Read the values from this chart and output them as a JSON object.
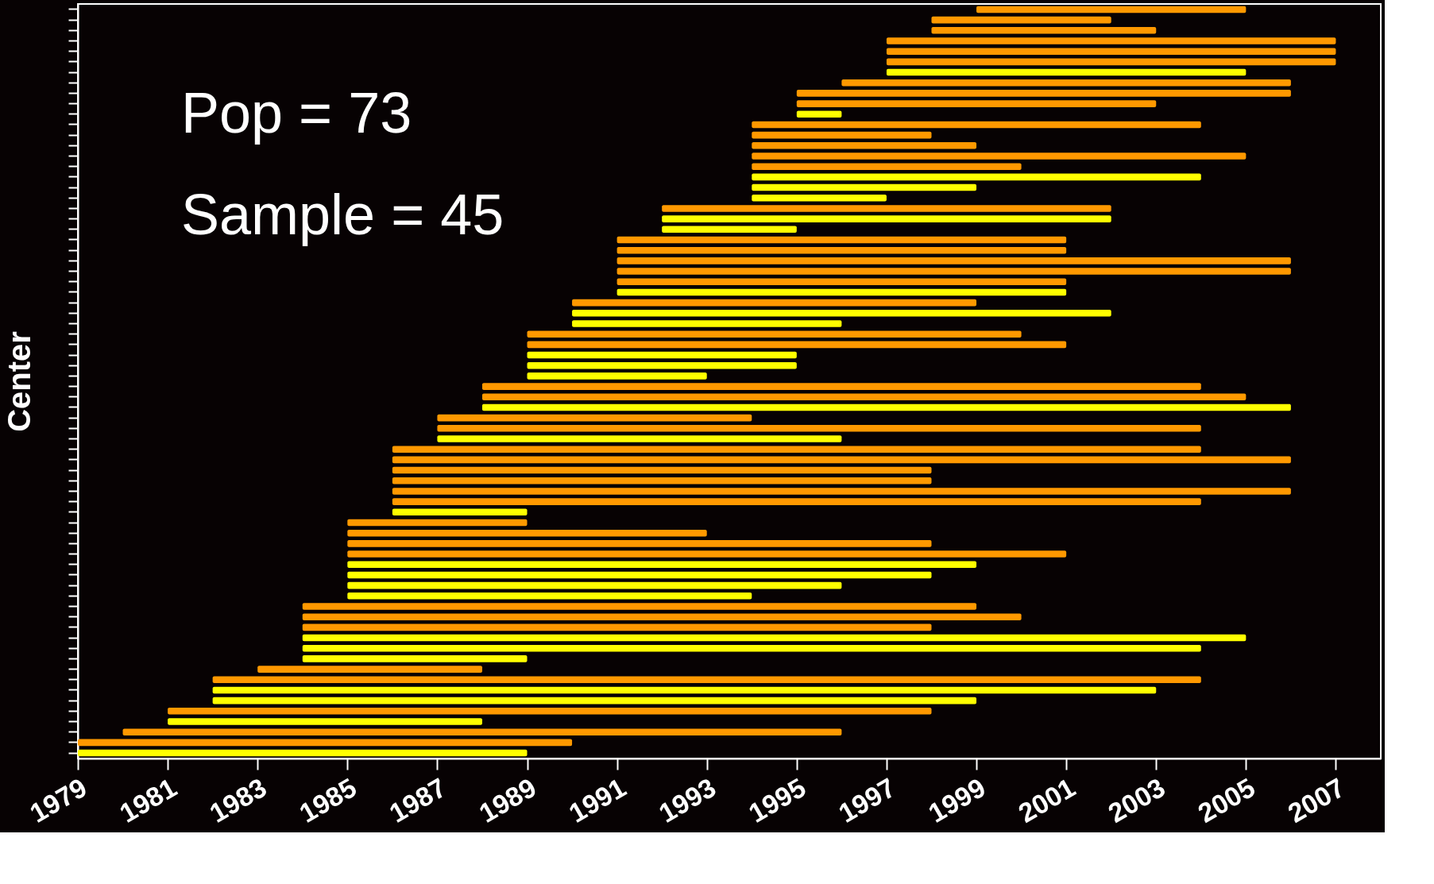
{
  "chart_data": {
    "type": "bar",
    "orientation": "horizontal",
    "ylabel": "Center",
    "tick_labels": "x",
    "grid": false,
    "annotations": [
      "Pop = 73",
      "Sample = 45"
    ],
    "categories": [
      null,
      null,
      null,
      null,
      null,
      null,
      null,
      null,
      null,
      null,
      null,
      null,
      null,
      null,
      null,
      null,
      null,
      null,
      null,
      null,
      null,
      null,
      null,
      null,
      null,
      null,
      null,
      null,
      null,
      null,
      null,
      null,
      null,
      null,
      null,
      null,
      null,
      null,
      null,
      null,
      null,
      null,
      null,
      null,
      null,
      null,
      null,
      null,
      null,
      null,
      null,
      null,
      null,
      null,
      null,
      null,
      null,
      null,
      null,
      null,
      null,
      null,
      null,
      null,
      null,
      null,
      null,
      null,
      null,
      null,
      null,
      null
    ],
    "base": [
      1999,
      1998,
      1998,
      1997,
      1997,
      1997,
      1997,
      1996,
      1995,
      1995,
      1995,
      1994,
      1994,
      1994,
      1994,
      1994,
      1994,
      1994,
      1994,
      1992,
      1992,
      1992,
      1991,
      1991,
      1991,
      1991,
      1991,
      1991,
      1990,
      1990,
      1990,
      1989,
      1989,
      1989,
      1989,
      1989,
      1988,
      1988,
      1988,
      1987,
      1987,
      1987,
      1986,
      1986,
      1986,
      1986,
      1986,
      1986,
      1986,
      1985,
      1985,
      1985,
      1985,
      1985,
      1985,
      1985,
      1985,
      1984,
      1984,
      1984,
      1984,
      1984,
      1984,
      1983,
      1982,
      1982,
      1982,
      1981,
      1981,
      1980,
      1979,
      1979
    ],
    "values": [
      6,
      4,
      5,
      10,
      10,
      10,
      8,
      10,
      11,
      8,
      1,
      10,
      4,
      5,
      11,
      6,
      10,
      5,
      3,
      10,
      10,
      3,
      10,
      10,
      15,
      15,
      10,
      10,
      9,
      12,
      6,
      11,
      12,
      6,
      6,
      4,
      16,
      17,
      18,
      7,
      17,
      9,
      18,
      20,
      12,
      12,
      20,
      18,
      3,
      4,
      8,
      13,
      16,
      14,
      13,
      11,
      9,
      15,
      16,
      14,
      21,
      20,
      5,
      5,
      22,
      21,
      17,
      17,
      7,
      16,
      11,
      10
    ],
    "colors": [
      "#ff9900",
      "#ff9900",
      "#ff9900",
      "#ff9900",
      "#ff9900",
      "#ff9900",
      "#ffff00",
      "#ff9900",
      "#ff9900",
      "#ff9900",
      "#ffff00",
      "#ff9900",
      "#ff9900",
      "#ff9900",
      "#ff9900",
      "#ff9900",
      "#ffff00",
      "#ffff00",
      "#ffff00",
      "#ff9900",
      "#ffff00",
      "#ffff00",
      "#ff9900",
      "#ff9900",
      "#ff9900",
      "#ff9900",
      "#ff9900",
      "#ffff00",
      "#ff9900",
      "#ffff00",
      "#ffff00",
      "#ff9900",
      "#ff9900",
      "#ffff00",
      "#ffff00",
      "#ffff00",
      "#ff9900",
      "#ff9900",
      "#ffff00",
      "#ff9900",
      "#ff9900",
      "#ffff00",
      "#ff9900",
      "#ff9900",
      "#ff9900",
      "#ff9900",
      "#ff9900",
      "#ff9900",
      "#ffff00",
      "#ff9900",
      "#ff9900",
      "#ff9900",
      "#ff9900",
      "#ffff00",
      "#ffff00",
      "#ffff00",
      "#ffff00",
      "#ff9900",
      "#ff9900",
      "#ff9900",
      "#ffff00",
      "#ffff00",
      "#ffff00",
      "#ff9900",
      "#ff9900",
      "#ffff00",
      "#ffff00",
      "#ff9900",
      "#ffff00",
      "#ff9900",
      "#ff9900",
      "#ffff00"
    ],
    "xlim": [
      1979,
      2008
    ],
    "xticks": [
      1979,
      1981,
      1983,
      1985,
      1987,
      1989,
      1991,
      1993,
      1995,
      1997,
      1999,
      2001,
      2003,
      2005,
      2007
    ]
  }
}
